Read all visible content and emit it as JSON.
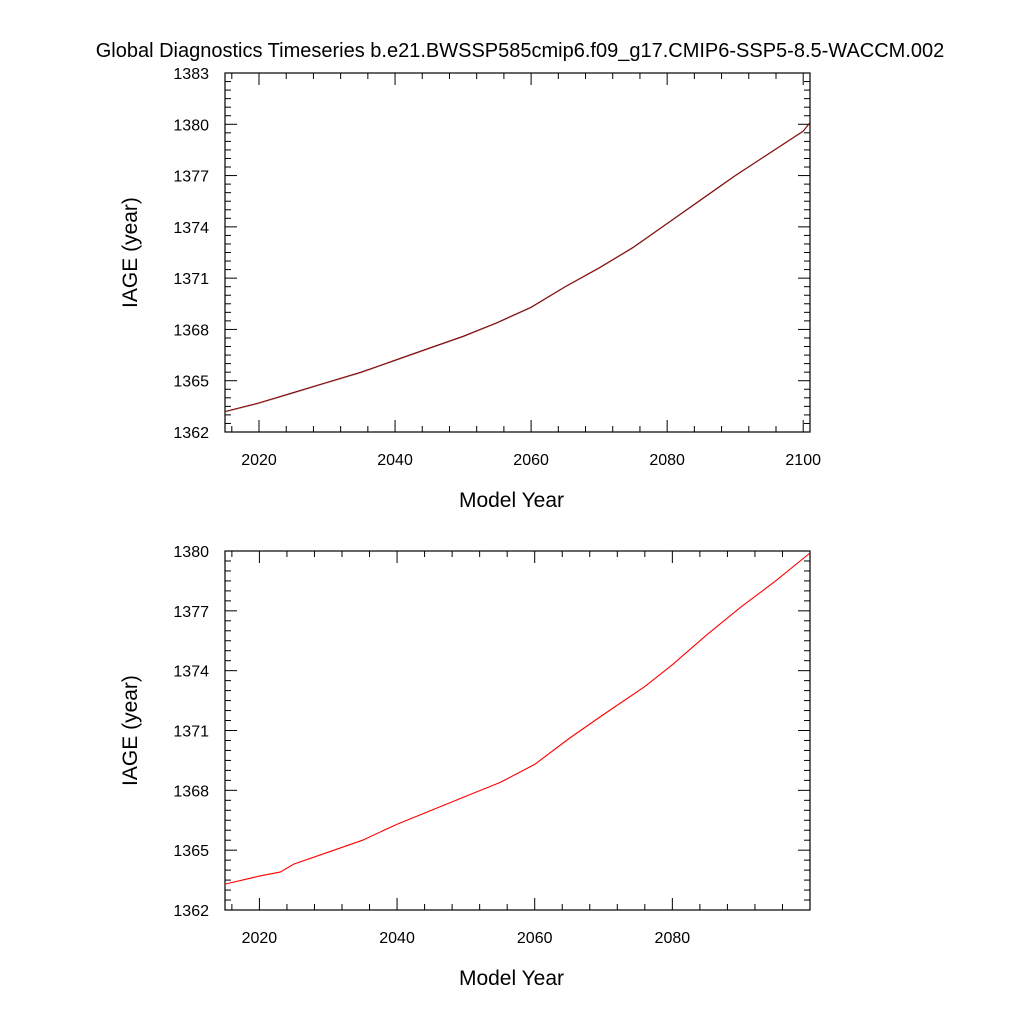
{
  "figure": {
    "title": "Global Diagnostics Timeseries b.e21.BWSSP585cmip6.f09_g17.CMIP6-SSP5-8.5-WACCM.002"
  },
  "colors": {
    "top_trace_primary": "#8b0000",
    "top_trace_secondary": "#2b2b2b",
    "bottom_trace": "#ff0000",
    "axes": "#000000"
  },
  "chart_data": [
    {
      "type": "line",
      "xlabel": "Model Year",
      "ylabel": "IAGE (year)",
      "xlim": [
        2015,
        2101
      ],
      "ylim": [
        1362,
        1383
      ],
      "x_ticks": [
        2020,
        2040,
        2060,
        2080,
        2100
      ],
      "x_tick_labels": [
        "2020",
        "2040",
        "2060",
        "2080",
        "2100"
      ],
      "y_ticks": [
        1362,
        1365,
        1368,
        1371,
        1374,
        1377,
        1380,
        1383
      ],
      "y_tick_labels": [
        "1362",
        "1365",
        "1368",
        "1371",
        "1374",
        "1377",
        "1380",
        "1383"
      ],
      "grid": false,
      "series": [
        {
          "color": "#8b0000",
          "x": [
            2015,
            2020,
            2025,
            2030,
            2035,
            2040,
            2045,
            2050,
            2055,
            2060,
            2065,
            2070,
            2075,
            2080,
            2085,
            2090,
            2095,
            2100,
            2101
          ],
          "y": [
            1363.2,
            1363.7,
            1364.3,
            1364.9,
            1365.5,
            1366.2,
            1366.9,
            1367.6,
            1368.4,
            1369.3,
            1370.5,
            1371.6,
            1372.8,
            1374.2,
            1375.6,
            1377.0,
            1378.3,
            1379.6,
            1380.1
          ]
        }
      ]
    },
    {
      "type": "line",
      "xlabel": "Model Year",
      "ylabel": "IAGE (year)",
      "xlim": [
        2015,
        2100
      ],
      "ylim": [
        1362,
        1380
      ],
      "x_ticks": [
        2020,
        2040,
        2060,
        2080
      ],
      "x_tick_labels": [
        "2020",
        "2040",
        "2060",
        "2080"
      ],
      "y_ticks": [
        1362,
        1365,
        1368,
        1371,
        1374,
        1377,
        1380
      ],
      "y_tick_labels": [
        "1362",
        "1365",
        "1368",
        "1371",
        "1374",
        "1377",
        "1380"
      ],
      "grid": false,
      "series": [
        {
          "color": "#ff0000",
          "x": [
            2015,
            2020,
            2023,
            2025,
            2030,
            2035,
            2040,
            2045,
            2050,
            2055,
            2060,
            2065,
            2070,
            2076,
            2080,
            2085,
            2090,
            2095,
            2100
          ],
          "y": [
            1363.3,
            1363.7,
            1363.9,
            1364.3,
            1364.9,
            1365.5,
            1366.3,
            1367.0,
            1367.7,
            1368.4,
            1369.3,
            1370.6,
            1371.8,
            1373.2,
            1374.3,
            1375.8,
            1377.2,
            1378.5,
            1379.9
          ]
        }
      ]
    }
  ]
}
